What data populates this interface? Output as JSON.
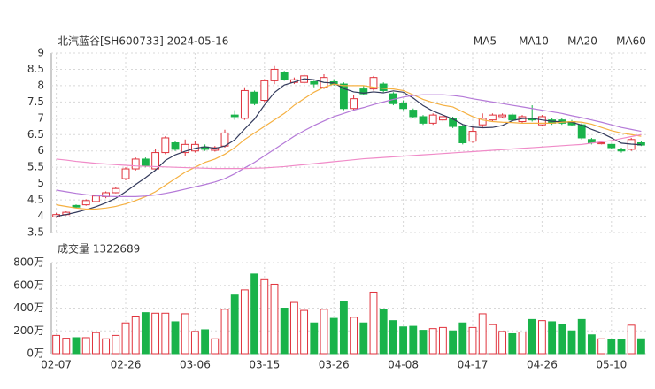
{
  "chart_data": [
    {
      "type": "candlestick",
      "title": "北汽蓝谷[SH600733] 2024-05-16",
      "categories": [
        "02-07",
        null,
        null,
        null,
        null,
        null,
        null,
        "02-26",
        null,
        null,
        null,
        null,
        null,
        null,
        "03-06",
        null,
        null,
        null,
        null,
        null,
        null,
        "03-15",
        null,
        null,
        null,
        null,
        null,
        null,
        "03-26",
        null,
        null,
        null,
        null,
        null,
        null,
        "04-08",
        null,
        null,
        null,
        null,
        null,
        null,
        "04-17",
        null,
        null,
        null,
        null,
        null,
        null,
        "04-26",
        null,
        null,
        null,
        null,
        null,
        null,
        "05-10",
        null,
        null,
        null
      ],
      "open": [
        3.98,
        4.05,
        4.33,
        4.35,
        4.45,
        4.6,
        4.72,
        5.15,
        5.45,
        5.75,
        5.45,
        5.95,
        6.25,
        5.95,
        6.0,
        6.12,
        6.02,
        6.15,
        7.1,
        7.0,
        7.8,
        7.55,
        8.15,
        8.4,
        8.1,
        8.1,
        8.12,
        7.95,
        8.12,
        8.05,
        7.3,
        7.9,
        7.9,
        8.05,
        7.75,
        7.45,
        7.25,
        7.05,
        6.85,
        6.95,
        7.0,
        6.75,
        6.3,
        6.8,
        6.95,
        7.05,
        7.1,
        6.9,
        7.0,
        6.8,
        6.95,
        6.95,
        6.9,
        6.8,
        6.35,
        6.22,
        6.2,
        6.05,
        6.05,
        6.25
      ],
      "close": [
        4.05,
        4.12,
        4.28,
        4.48,
        4.62,
        4.72,
        4.85,
        5.45,
        5.75,
        5.55,
        5.95,
        6.4,
        6.05,
        6.2,
        6.2,
        6.05,
        6.1,
        6.55,
        7.05,
        7.85,
        7.45,
        8.15,
        8.5,
        8.2,
        8.18,
        8.3,
        8.05,
        8.25,
        8.05,
        7.3,
        7.6,
        7.75,
        8.25,
        7.85,
        7.45,
        7.3,
        7.05,
        6.85,
        7.1,
        7.05,
        6.75,
        6.25,
        6.6,
        7.0,
        7.1,
        7.1,
        6.95,
        7.05,
        6.95,
        7.05,
        6.85,
        6.85,
        6.8,
        6.4,
        6.25,
        6.25,
        6.1,
        6.0,
        6.35,
        6.18
      ],
      "high": [
        4.1,
        4.15,
        4.36,
        4.52,
        4.66,
        4.76,
        4.9,
        5.5,
        5.8,
        5.8,
        6.05,
        6.45,
        6.3,
        6.35,
        6.3,
        6.2,
        6.15,
        6.65,
        7.25,
        7.95,
        7.85,
        8.2,
        8.6,
        8.45,
        8.25,
        8.35,
        8.15,
        8.35,
        8.2,
        8.1,
        7.7,
        8.0,
        8.3,
        8.1,
        7.8,
        7.55,
        7.3,
        7.1,
        7.15,
        7.1,
        7.05,
        6.8,
        6.75,
        7.15,
        7.15,
        7.15,
        7.15,
        7.1,
        7.4,
        7.1,
        7.0,
        7.0,
        6.95,
        6.85,
        6.4,
        6.28,
        6.22,
        6.1,
        6.4,
        6.3
      ],
      "low": [
        3.95,
        4.02,
        4.25,
        4.32,
        4.42,
        4.55,
        4.7,
        5.1,
        5.4,
        5.5,
        5.4,
        5.9,
        6.0,
        5.85,
        5.95,
        6.0,
        5.98,
        6.1,
        6.95,
        6.95,
        7.4,
        7.5,
        8.05,
        8.15,
        8.05,
        8.05,
        7.95,
        7.9,
        8.0,
        7.25,
        7.25,
        7.7,
        7.85,
        7.8,
        7.4,
        7.25,
        7.0,
        6.8,
        6.8,
        6.9,
        6.7,
        6.2,
        6.25,
        6.7,
        6.9,
        7.0,
        6.9,
        6.85,
        6.9,
        6.75,
        6.8,
        6.8,
        6.75,
        6.35,
        6.2,
        6.2,
        6.05,
        5.95,
        6.0,
        6.15
      ],
      "up_color": "#e0323c",
      "down_color": "#19b34a",
      "series": [
        {
          "name": "MA5",
          "color": "#333a5c",
          "values": [
            4.0,
            4.05,
            4.12,
            4.2,
            4.29,
            4.41,
            4.55,
            4.75,
            4.97,
            5.18,
            5.41,
            5.71,
            5.88,
            5.99,
            6.08,
            6.13,
            6.08,
            6.15,
            6.34,
            6.67,
            6.98,
            7.41,
            7.79,
            8.02,
            8.11,
            8.21,
            8.18,
            8.1,
            8.08,
            7.91,
            7.81,
            7.77,
            7.81,
            7.78,
            7.84,
            7.8,
            7.62,
            7.39,
            7.22,
            7.1,
            6.98,
            6.81,
            6.73,
            6.71,
            6.72,
            6.78,
            6.93,
            6.99,
            7.0,
            6.95,
            6.91,
            6.89,
            6.88,
            6.79,
            6.66,
            6.55,
            6.4,
            6.24,
            6.21,
            6.19
          ]
        },
        {
          "name": "MA10",
          "color": "#f5b041",
          "values": [
            4.35,
            4.3,
            4.25,
            4.22,
            4.22,
            4.25,
            4.3,
            4.38,
            4.48,
            4.6,
            4.75,
            4.95,
            5.15,
            5.35,
            5.5,
            5.65,
            5.75,
            5.9,
            6.1,
            6.35,
            6.55,
            6.75,
            6.95,
            7.15,
            7.4,
            7.6,
            7.8,
            7.95,
            8.05,
            8.0,
            8.0,
            8.0,
            7.95,
            7.92,
            7.9,
            7.85,
            7.72,
            7.58,
            7.48,
            7.4,
            7.35,
            7.2,
            7.05,
            6.95,
            6.9,
            6.88,
            6.87,
            6.85,
            6.85,
            6.85,
            6.85,
            6.88,
            6.9,
            6.88,
            6.82,
            6.72,
            6.62,
            6.55,
            6.5,
            6.45
          ]
        },
        {
          "name": "MA20",
          "color": "#b57ad8",
          "values": [
            4.8,
            4.75,
            4.7,
            4.66,
            4.63,
            4.61,
            4.6,
            4.6,
            4.6,
            4.62,
            4.65,
            4.7,
            4.76,
            4.83,
            4.9,
            4.97,
            5.05,
            5.15,
            5.3,
            5.48,
            5.65,
            5.85,
            6.05,
            6.25,
            6.45,
            6.62,
            6.78,
            6.92,
            7.05,
            7.15,
            7.25,
            7.33,
            7.42,
            7.5,
            7.58,
            7.65,
            7.7,
            7.72,
            7.72,
            7.72,
            7.7,
            7.66,
            7.6,
            7.55,
            7.5,
            7.45,
            7.4,
            7.35,
            7.3,
            7.25,
            7.2,
            7.15,
            7.08,
            7.02,
            6.95,
            6.88,
            6.8,
            6.72,
            6.66,
            6.6
          ]
        },
        {
          "name": "MA60",
          "color": "#f08bc8",
          "values": [
            5.75,
            5.72,
            5.68,
            5.65,
            5.62,
            5.6,
            5.58,
            5.56,
            5.54,
            5.53,
            5.52,
            5.51,
            5.5,
            5.49,
            5.48,
            5.47,
            5.46,
            5.46,
            5.46,
            5.46,
            5.47,
            5.48,
            5.5,
            5.52,
            5.55,
            5.58,
            5.61,
            5.64,
            5.67,
            5.7,
            5.73,
            5.76,
            5.78,
            5.8,
            5.82,
            5.84,
            5.86,
            5.88,
            5.9,
            5.92,
            5.94,
            5.96,
            5.98,
            6.0,
            6.02,
            6.04,
            6.06,
            6.08,
            6.1,
            6.12,
            6.14,
            6.16,
            6.18,
            6.2,
            6.24,
            6.28,
            6.32,
            6.38,
            6.44,
            6.5
          ]
        }
      ],
      "ylim": [
        3.5,
        9
      ],
      "yticks": [
        3.5,
        4,
        4.5,
        5,
        5.5,
        6,
        6.5,
        7,
        7.5,
        8,
        8.5,
        9
      ],
      "grid": true
    },
    {
      "type": "bar",
      "title": "成交量 1322689",
      "values": [
        160,
        135,
        140,
        140,
        185,
        130,
        160,
        270,
        330,
        360,
        355,
        355,
        280,
        350,
        195,
        210,
        130,
        390,
        515,
        560,
        700,
        650,
        610,
        400,
        450,
        380,
        270,
        390,
        310,
        455,
        320,
        270,
        540,
        385,
        290,
        235,
        240,
        205,
        220,
        230,
        200,
        270,
        230,
        350,
        255,
        195,
        175,
        190,
        300,
        290,
        280,
        255,
        200,
        300,
        165,
        130,
        125,
        125,
        250,
        130
      ],
      "ylim": [
        0,
        800
      ],
      "yticks": [
        {
          "value": 0,
          "label": "0万"
        },
        {
          "value": 200,
          "label": "200万"
        },
        {
          "value": 400,
          "label": "400万"
        },
        {
          "value": 600,
          "label": "600万"
        },
        {
          "value": 800,
          "label": "800万"
        }
      ]
    }
  ]
}
